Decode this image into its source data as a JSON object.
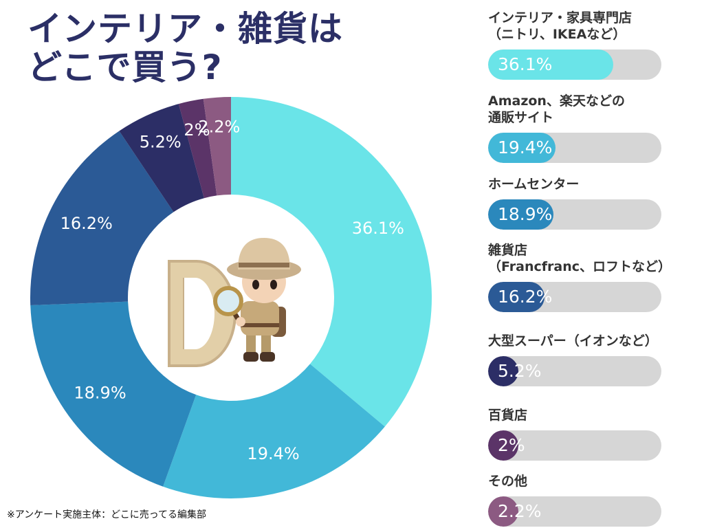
{
  "title_lines": [
    "インテリア・雑貨は",
    "どこで買う?"
  ],
  "footnote": "※アンケート実施主体：どこに売ってる編集部",
  "chart_data": {
    "type": "pie",
    "categories": [
      "インテリア・家具専門店（ニトリ、IKEAなど）",
      "Amazon、楽天などの通販サイト",
      "ホームセンター",
      "雑貨店（Francfranc、ロフトなど）",
      "大型スーパー（イオンなど）",
      "百貨店",
      "その他"
    ],
    "legend_lines": [
      [
        "インテリア・家具専門店",
        "（ニトリ、IKEAなど）"
      ],
      [
        "Amazon、楽天などの",
        "通販サイト"
      ],
      [
        "ホームセンター"
      ],
      [
        "雑貨店",
        "（Francfranc、ロフトなど）"
      ],
      [
        "大型スーパー（イオンなど）"
      ],
      [
        "百貨店"
      ],
      [
        "その他"
      ]
    ],
    "values": [
      36.1,
      19.4,
      18.9,
      16.2,
      5.2,
      2,
      2.2
    ],
    "value_labels": [
      "36.1%",
      "19.4%",
      "18.9%",
      "16.2%",
      "5.2%",
      "2%",
      "2.2%"
    ],
    "colors": [
      "#6ae4e8",
      "#42b8d8",
      "#2b88bc",
      "#2b5a96",
      "#2c2e66",
      "#5b3468",
      "#8c5a82"
    ],
    "legend_position": "right"
  }
}
